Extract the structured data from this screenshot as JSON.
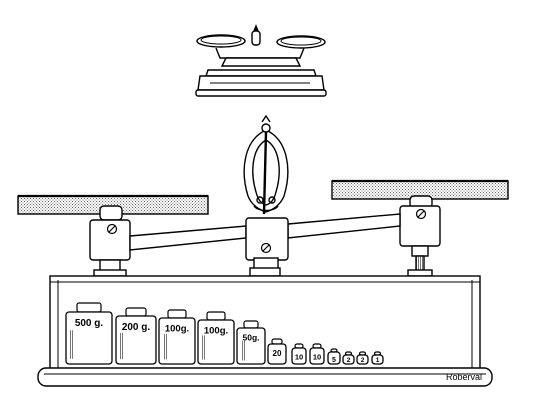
{
  "brand": "Roberval",
  "colors": {
    "ink": "#000000",
    "paper": "#ffffff",
    "hatch": "#666666"
  },
  "icons": {
    "preview": "small-scale-icon",
    "needle": "balance-needle-icon",
    "screw": "screw-icon"
  },
  "weights": [
    {
      "id": "w500",
      "label": "500 g."
    },
    {
      "id": "w200",
      "label": "200 g."
    },
    {
      "id": "w100a",
      "label": "100g."
    },
    {
      "id": "w100b",
      "label": "100g."
    },
    {
      "id": "w50",
      "label": "50g."
    },
    {
      "id": "w20",
      "label": "20"
    },
    {
      "id": "w10a",
      "label": "10"
    },
    {
      "id": "w10b",
      "label": "10"
    },
    {
      "id": "w5",
      "label": "5"
    },
    {
      "id": "w2a",
      "label": "2"
    },
    {
      "id": "w2b",
      "label": "2"
    },
    {
      "id": "w1",
      "label": "1"
    }
  ]
}
